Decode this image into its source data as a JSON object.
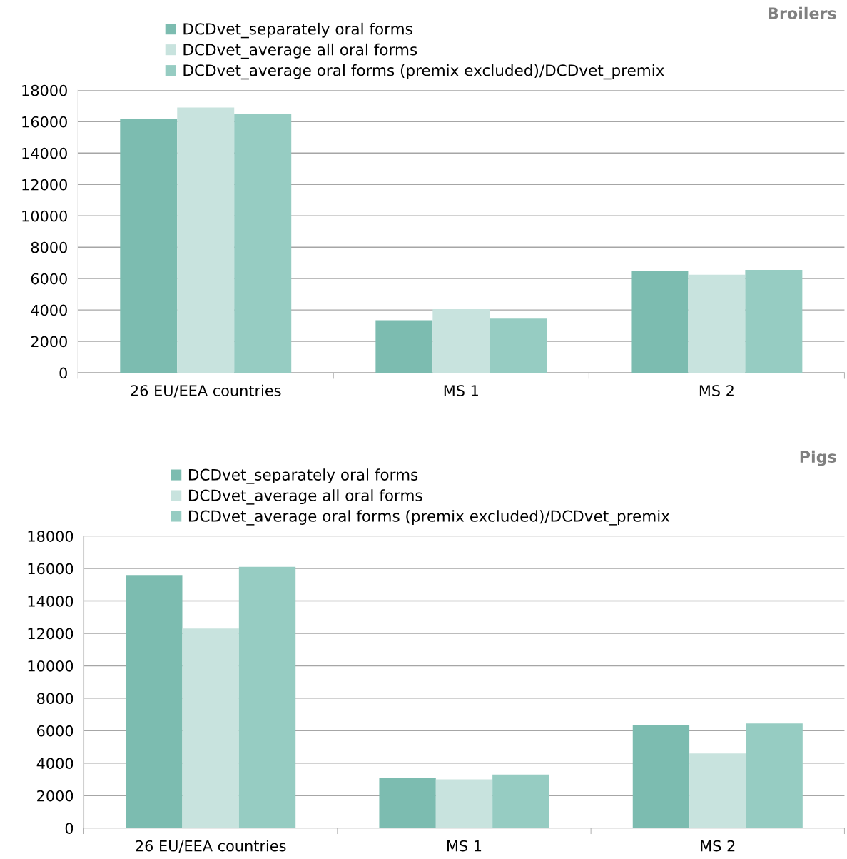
{
  "chart_data": [
    {
      "type": "bar",
      "title": "Broilers",
      "categories": [
        "26 EU/EEA countries",
        "MS 1",
        "MS 2"
      ],
      "series": [
        {
          "name": "DCDvet_separately oral forms",
          "color": "#7cbcb0",
          "values": [
            16200,
            3350,
            6500
          ]
        },
        {
          "name": "DCDvet_average all oral forms",
          "color": "#c8e3de",
          "values": [
            16900,
            4050,
            6250
          ]
        },
        {
          "name": "DCDvet_average oral forms (premix excluded)/DCDvet_premix",
          "color": "#96ccc2",
          "values": [
            16500,
            3450,
            6550
          ]
        }
      ],
      "ylim": [
        0,
        18000
      ],
      "yticks": [
        0,
        2000,
        4000,
        6000,
        8000,
        10000,
        12000,
        14000,
        16000,
        18000
      ],
      "grid": "y",
      "legend": "top left"
    },
    {
      "type": "bar",
      "title": "Pigs",
      "categories": [
        "26 EU/EEA countries",
        "MS 1",
        "MS 2"
      ],
      "series": [
        {
          "name": "DCDvet_separately oral forms",
          "color": "#7cbcb0",
          "values": [
            15600,
            3100,
            6350
          ]
        },
        {
          "name": "DCDvet_average all oral forms",
          "color": "#c8e3de",
          "values": [
            12300,
            3000,
            4600
          ]
        },
        {
          "name": "DCDvet_average oral forms (premix excluded)/DCDvet_premix",
          "color": "#96ccc2",
          "values": [
            16100,
            3300,
            6450
          ]
        }
      ],
      "ylim": [
        0,
        18000
      ],
      "yticks": [
        0,
        2000,
        4000,
        6000,
        8000,
        10000,
        12000,
        14000,
        16000,
        18000
      ],
      "grid": "y",
      "legend": "top left"
    }
  ]
}
